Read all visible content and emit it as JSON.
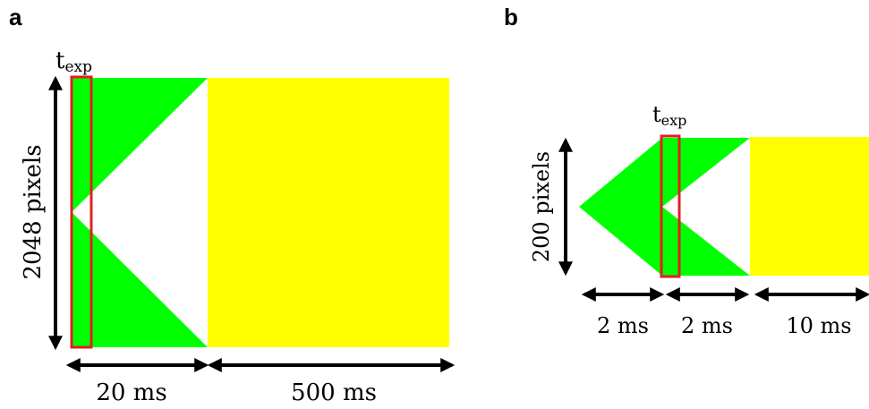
{
  "panels": [
    {
      "label": "a",
      "exposure_label": {
        "base": "t",
        "subscript": "exp"
      },
      "height_label": "2048 pixels",
      "durations": [
        "20 ms",
        "500 ms"
      ]
    },
    {
      "label": "b",
      "exposure_label": {
        "base": "t",
        "subscript": "exp"
      },
      "height_label": "200 pixels",
      "durations": [
        "2 ms",
        "2 ms",
        "10 ms"
      ]
    }
  ],
  "colors": {
    "sweep": "#00ff00",
    "readout": "#ffff00",
    "exposure_box": "#e02020",
    "arrow": "#000000"
  }
}
